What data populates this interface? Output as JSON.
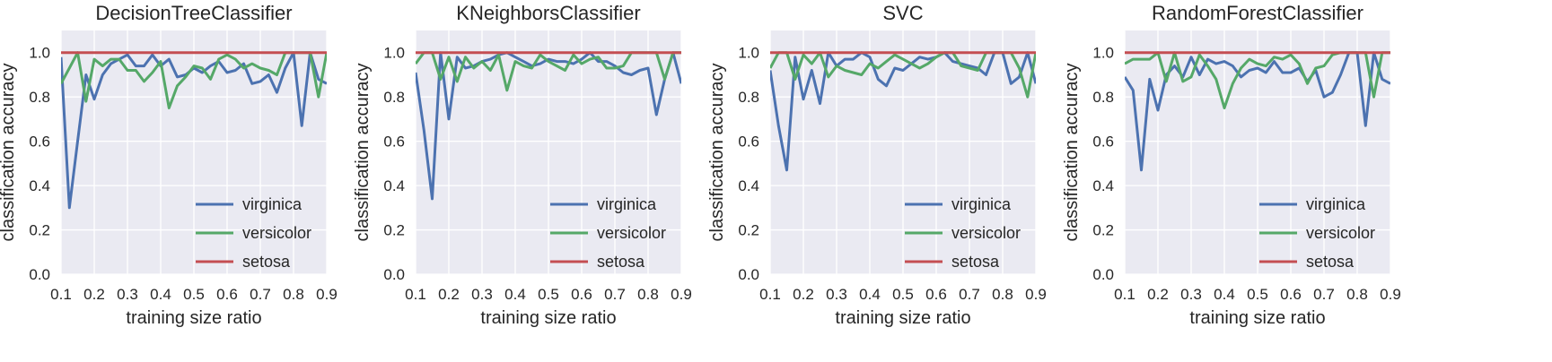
{
  "chart_data": [
    {
      "type": "line",
      "title": "DecisionTreeClassifier",
      "xlabel": "training size ratio",
      "ylabel": "classification accuracy",
      "xlim": [
        0.1,
        0.9
      ],
      "ylim": [
        0.0,
        1.1
      ],
      "xticks": [
        "0.1",
        "0.2",
        "0.3",
        "0.4",
        "0.5",
        "0.6",
        "0.7",
        "0.8",
        "0.9"
      ],
      "yticks": [
        "0.0",
        "0.2",
        "0.4",
        "0.6",
        "0.8",
        "1.0"
      ],
      "grid": true,
      "legend_position": "lower-right",
      "x": [
        0.1,
        0.125,
        0.15,
        0.175,
        0.2,
        0.225,
        0.25,
        0.275,
        0.3,
        0.325,
        0.35,
        0.375,
        0.4,
        0.425,
        0.45,
        0.475,
        0.5,
        0.525,
        0.55,
        0.575,
        0.6,
        0.625,
        0.65,
        0.675,
        0.7,
        0.725,
        0.75,
        0.775,
        0.8,
        0.825,
        0.85,
        0.875,
        0.9
      ],
      "series": [
        {
          "name": "virginica",
          "color": "#4c72b0",
          "values": [
            0.98,
            0.3,
            0.6,
            0.9,
            0.79,
            0.9,
            0.95,
            0.97,
            0.99,
            0.94,
            0.94,
            0.99,
            0.94,
            0.97,
            0.89,
            0.9,
            0.93,
            0.91,
            0.94,
            0.96,
            0.91,
            0.92,
            0.95,
            0.86,
            0.87,
            0.9,
            0.82,
            0.93,
            1.0,
            0.67,
            1.0,
            0.88,
            0.86
          ]
        },
        {
          "name": "versicolor",
          "color": "#55a868",
          "values": [
            0.86,
            0.93,
            1.0,
            0.78,
            0.97,
            0.94,
            0.97,
            0.97,
            0.92,
            0.92,
            0.87,
            0.91,
            0.96,
            0.75,
            0.85,
            0.89,
            0.94,
            0.93,
            0.88,
            0.97,
            0.99,
            0.97,
            0.93,
            0.95,
            0.93,
            0.92,
            0.9,
            1.0,
            1.0,
            1.0,
            1.0,
            0.8,
            1.0
          ]
        },
        {
          "name": "setosa",
          "color": "#c44e52",
          "values": [
            1.0,
            1.0,
            1.0,
            1.0,
            1.0,
            1.0,
            1.0,
            1.0,
            1.0,
            1.0,
            1.0,
            1.0,
            1.0,
            1.0,
            1.0,
            1.0,
            1.0,
            1.0,
            1.0,
            1.0,
            1.0,
            1.0,
            1.0,
            1.0,
            1.0,
            1.0,
            1.0,
            1.0,
            1.0,
            1.0,
            1.0,
            1.0,
            1.0
          ]
        }
      ]
    },
    {
      "type": "line",
      "title": "KNeighborsClassifier",
      "xlabel": "training size ratio",
      "ylabel": "classification accuracy",
      "xlim": [
        0.1,
        0.9
      ],
      "ylim": [
        0.0,
        1.1
      ],
      "xticks": [
        "0.1",
        "0.2",
        "0.3",
        "0.4",
        "0.5",
        "0.6",
        "0.7",
        "0.8",
        "0.9"
      ],
      "yticks": [
        "0.0",
        "0.2",
        "0.4",
        "0.6",
        "0.8",
        "1.0"
      ],
      "grid": true,
      "legend_position": "lower-right",
      "x": [
        0.1,
        0.125,
        0.15,
        0.175,
        0.2,
        0.225,
        0.25,
        0.275,
        0.3,
        0.325,
        0.35,
        0.375,
        0.4,
        0.425,
        0.45,
        0.475,
        0.5,
        0.525,
        0.55,
        0.575,
        0.6,
        0.625,
        0.65,
        0.675,
        0.7,
        0.725,
        0.75,
        0.775,
        0.8,
        0.825,
        0.85,
        0.875,
        0.9
      ],
      "series": [
        {
          "name": "virginica",
          "color": "#4c72b0",
          "values": [
            0.91,
            0.65,
            0.34,
            1.0,
            0.7,
            0.98,
            0.93,
            0.94,
            0.96,
            0.97,
            0.99,
            1.0,
            0.98,
            0.96,
            0.94,
            0.95,
            0.97,
            0.96,
            0.96,
            0.95,
            0.97,
            1.0,
            0.96,
            0.96,
            0.94,
            0.91,
            0.9,
            0.92,
            0.93,
            0.72,
            0.88,
            1.0,
            0.86
          ]
        },
        {
          "name": "versicolor",
          "color": "#55a868",
          "values": [
            0.95,
            1.0,
            1.0,
            0.88,
            0.98,
            0.87,
            0.98,
            0.93,
            0.96,
            0.92,
            0.99,
            0.83,
            0.96,
            0.94,
            0.93,
            0.99,
            0.96,
            0.94,
            0.92,
            0.99,
            0.95,
            0.97,
            0.98,
            0.93,
            0.93,
            0.94,
            1.0,
            1.0,
            1.0,
            1.0,
            0.88,
            1.0,
            1.0
          ]
        },
        {
          "name": "setosa",
          "color": "#c44e52",
          "values": [
            1.0,
            1.0,
            1.0,
            1.0,
            1.0,
            1.0,
            1.0,
            1.0,
            1.0,
            1.0,
            1.0,
            1.0,
            1.0,
            1.0,
            1.0,
            1.0,
            1.0,
            1.0,
            1.0,
            1.0,
            1.0,
            1.0,
            1.0,
            1.0,
            1.0,
            1.0,
            1.0,
            1.0,
            1.0,
            1.0,
            1.0,
            1.0,
            1.0
          ]
        }
      ]
    },
    {
      "type": "line",
      "title": "SVC",
      "xlabel": "training size ratio",
      "ylabel": "classification accuracy",
      "xlim": [
        0.1,
        0.9
      ],
      "ylim": [
        0.0,
        1.1
      ],
      "xticks": [
        "0.1",
        "0.2",
        "0.3",
        "0.4",
        "0.5",
        "0.6",
        "0.7",
        "0.8",
        "0.9"
      ],
      "yticks": [
        "0.0",
        "0.2",
        "0.4",
        "0.6",
        "0.8",
        "1.0"
      ],
      "grid": true,
      "legend_position": "lower-right",
      "x": [
        0.1,
        0.125,
        0.15,
        0.175,
        0.2,
        0.225,
        0.25,
        0.275,
        0.3,
        0.325,
        0.35,
        0.375,
        0.4,
        0.425,
        0.45,
        0.475,
        0.5,
        0.525,
        0.55,
        0.575,
        0.6,
        0.625,
        0.65,
        0.675,
        0.7,
        0.725,
        0.75,
        0.775,
        0.8,
        0.825,
        0.85,
        0.875,
        0.9
      ],
      "series": [
        {
          "name": "virginica",
          "color": "#4c72b0",
          "values": [
            0.92,
            0.67,
            0.47,
            0.98,
            0.79,
            0.92,
            0.77,
            1.0,
            0.94,
            0.97,
            0.97,
            1.0,
            0.98,
            0.88,
            0.85,
            0.93,
            0.92,
            0.95,
            0.98,
            0.97,
            0.98,
            1.0,
            0.96,
            0.95,
            0.94,
            0.93,
            0.9,
            1.0,
            1.0,
            0.86,
            0.89,
            1.0,
            0.86
          ]
        },
        {
          "name": "versicolor",
          "color": "#55a868",
          "values": [
            0.93,
            1.0,
            1.0,
            0.88,
            0.99,
            0.95,
            1.0,
            0.89,
            0.94,
            0.92,
            0.91,
            0.9,
            0.95,
            0.93,
            0.96,
            0.99,
            0.97,
            0.95,
            0.93,
            0.95,
            0.98,
            1.0,
            1.0,
            0.94,
            0.93,
            0.92,
            1.0,
            1.0,
            1.0,
            1.0,
            0.93,
            0.8,
            1.0
          ]
        },
        {
          "name": "setosa",
          "color": "#c44e52",
          "values": [
            1.0,
            1.0,
            1.0,
            1.0,
            1.0,
            1.0,
            1.0,
            1.0,
            1.0,
            1.0,
            1.0,
            1.0,
            1.0,
            1.0,
            1.0,
            1.0,
            1.0,
            1.0,
            1.0,
            1.0,
            1.0,
            1.0,
            1.0,
            1.0,
            1.0,
            1.0,
            1.0,
            1.0,
            1.0,
            1.0,
            1.0,
            1.0,
            1.0
          ]
        }
      ]
    },
    {
      "type": "line",
      "title": "RandomForestClassifier",
      "xlabel": "training size ratio",
      "ylabel": "classification accuracy",
      "xlim": [
        0.1,
        0.9
      ],
      "ylim": [
        0.0,
        1.1
      ],
      "xticks": [
        "0.1",
        "0.2",
        "0.3",
        "0.4",
        "0.5",
        "0.6",
        "0.7",
        "0.8",
        "0.9"
      ],
      "yticks": [
        "0.0",
        "0.2",
        "0.4",
        "0.6",
        "0.8",
        "1.0"
      ],
      "grid": true,
      "legend_position": "lower-right",
      "x": [
        0.1,
        0.125,
        0.15,
        0.175,
        0.2,
        0.225,
        0.25,
        0.275,
        0.3,
        0.325,
        0.35,
        0.375,
        0.4,
        0.425,
        0.45,
        0.475,
        0.5,
        0.525,
        0.55,
        0.575,
        0.6,
        0.625,
        0.65,
        0.675,
        0.7,
        0.725,
        0.75,
        0.775,
        0.8,
        0.825,
        0.85,
        0.875,
        0.9
      ],
      "series": [
        {
          "name": "virginica",
          "color": "#4c72b0",
          "values": [
            0.89,
            0.83,
            0.47,
            0.88,
            0.74,
            0.9,
            0.94,
            0.89,
            0.98,
            0.9,
            0.97,
            0.95,
            0.96,
            0.94,
            0.89,
            0.92,
            0.93,
            0.91,
            0.96,
            0.91,
            0.91,
            0.93,
            0.87,
            0.92,
            0.8,
            0.82,
            0.9,
            1.0,
            1.0,
            0.67,
            1.0,
            0.88,
            0.86
          ]
        },
        {
          "name": "versicolor",
          "color": "#55a868",
          "values": [
            0.95,
            0.97,
            0.97,
            0.97,
            1.0,
            0.87,
            1.0,
            0.87,
            0.89,
            0.99,
            0.94,
            0.88,
            0.75,
            0.86,
            0.93,
            0.97,
            0.95,
            0.94,
            0.98,
            0.97,
            0.99,
            0.95,
            0.86,
            0.93,
            0.94,
            0.99,
            1.0,
            1.0,
            1.0,
            1.0,
            0.8,
            1.0,
            1.0
          ]
        },
        {
          "name": "setosa",
          "color": "#c44e52",
          "values": [
            1.0,
            1.0,
            1.0,
            1.0,
            1.0,
            1.0,
            1.0,
            1.0,
            1.0,
            1.0,
            1.0,
            1.0,
            1.0,
            1.0,
            1.0,
            1.0,
            1.0,
            1.0,
            1.0,
            1.0,
            1.0,
            1.0,
            1.0,
            1.0,
            1.0,
            1.0,
            1.0,
            1.0,
            1.0,
            1.0,
            1.0,
            1.0,
            1.0
          ]
        }
      ]
    }
  ]
}
